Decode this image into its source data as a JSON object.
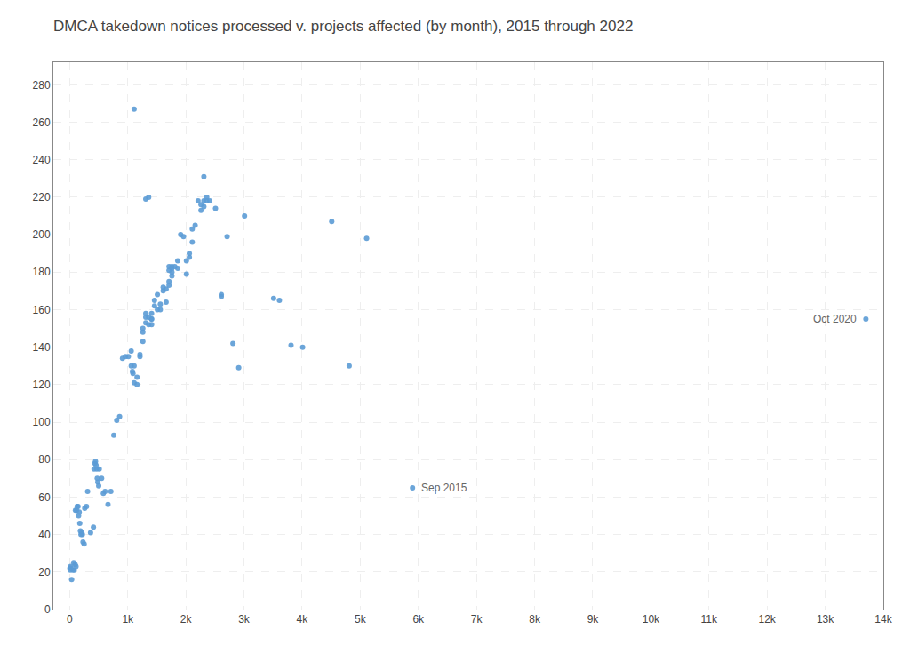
{
  "chart_data": {
    "type": "scatter",
    "title": "DMCA takedown notices processed v. projects affected (by month), 2015 through 2022",
    "color": "#5b9bd5",
    "grid": true,
    "xlim": [
      -280,
      14000
    ],
    "ylim": [
      0,
      292
    ],
    "xticks": [
      0,
      {
        "value": 1000,
        "label": "1k"
      },
      {
        "value": 2000,
        "label": "2k"
      },
      {
        "value": 3000,
        "label": "3k"
      },
      {
        "value": 4000,
        "label": "4k"
      },
      {
        "value": 5000,
        "label": "5k"
      },
      {
        "value": 6000,
        "label": "6k"
      },
      {
        "value": 7000,
        "label": "7k"
      },
      {
        "value": 8000,
        "label": "8k"
      },
      {
        "value": 9000,
        "label": "9k"
      },
      {
        "value": 10000,
        "label": "10k"
      },
      {
        "value": 11000,
        "label": "11k"
      },
      {
        "value": 12000,
        "label": "12k"
      },
      {
        "value": 13000,
        "label": "13k"
      },
      {
        "value": 14000,
        "label": "14k"
      }
    ],
    "yticks": [
      0,
      20,
      40,
      60,
      80,
      100,
      120,
      140,
      160,
      180,
      200,
      220,
      240,
      260,
      280
    ],
    "annotations": [
      {
        "x": 5900,
        "y": 65,
        "text": "Sep 2015"
      },
      {
        "x": 13700,
        "y": 155,
        "text": "Oct 2020"
      }
    ],
    "x": [
      5,
      10,
      18,
      25,
      35,
      55,
      70,
      80,
      95,
      110,
      100,
      120,
      130,
      145,
      155,
      165,
      175,
      185,
      195,
      210,
      220,
      230,
      250,
      260,
      290,
      310,
      360,
      410,
      420,
      435,
      445,
      455,
      465,
      475,
      485,
      500,
      510,
      550,
      580,
      610,
      660,
      710,
      760,
      810,
      860,
      910,
      960,
      1010,
      1060,
      1060,
      1080,
      1090,
      1110,
      1110,
      1160,
      1160,
      1210,
      1210,
      1260,
      1260,
      1260,
      1310,
      1310,
      1310,
      1360,
      1360,
      1410,
      1410,
      1410,
      1410,
      1460,
      1460,
      1510,
      1510,
      1560,
      1560,
      1610,
      1610,
      1660,
      1660,
      1710,
      1710,
      1710,
      1710,
      1760,
      1760,
      1760,
      1760,
      1810,
      1860,
      1860,
      1910,
      1960,
      2010,
      2010,
      2060,
      2060,
      2110,
      2110,
      2160,
      2210,
      2260,
      2260,
      2310,
      2310,
      2310,
      2360,
      2360,
      2410,
      2510,
      2610,
      2610,
      2710,
      2810,
      2910,
      3010,
      3510,
      3610,
      3810,
      4010,
      4510,
      4810,
      5110,
      5900,
      13700,
      1110,
      1310,
      1360
    ],
    "values": [
      22,
      21,
      23,
      22,
      16,
      21,
      25,
      21,
      24,
      23,
      53,
      53,
      55,
      55,
      50,
      52,
      46,
      42,
      40,
      41,
      40,
      36,
      35,
      54,
      55,
      63,
      41,
      44,
      75,
      78,
      79,
      77,
      75,
      70,
      68,
      66,
      75,
      70,
      62,
      63,
      56,
      63,
      93,
      101,
      103,
      134,
      135,
      135,
      138,
      130,
      127,
      126,
      130,
      121,
      120,
      124,
      136,
      135,
      150,
      148,
      143,
      153,
      156,
      158,
      156,
      152,
      155,
      155,
      152,
      158,
      162,
      165,
      160,
      168,
      163,
      160,
      170,
      172,
      171,
      164,
      173,
      175,
      181,
      183,
      183,
      182,
      180,
      178,
      183,
      186,
      182,
      200,
      199,
      179,
      186,
      188,
      190,
      196,
      203,
      205,
      218,
      213,
      216,
      215,
      218,
      231,
      220,
      218,
      218,
      214,
      168,
      167,
      199,
      142,
      129,
      210,
      166,
      165,
      141,
      140,
      207,
      130,
      198,
      65,
      155,
      267,
      219,
      220
    ]
  }
}
